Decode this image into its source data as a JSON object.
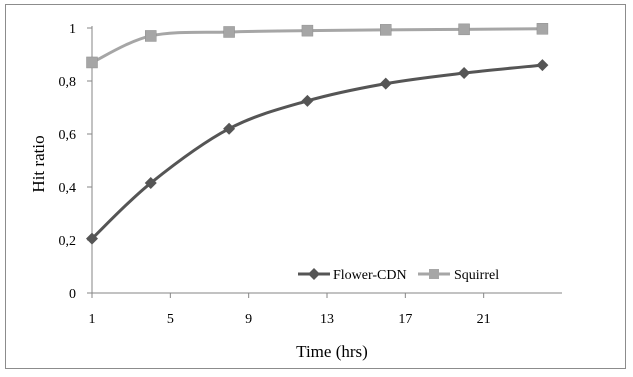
{
  "chart_data": {
    "type": "line",
    "title": "",
    "xlabel": "Time (hrs)",
    "ylabel": "Hit  ratio",
    "xlim": [
      1,
      25
    ],
    "ylim": [
      0,
      1
    ],
    "x_ticks": [
      "1",
      "5",
      "9",
      "13",
      "17",
      "21"
    ],
    "y_ticks": [
      "0",
      "0,2",
      "0,4",
      "0,6",
      "0,8",
      "1"
    ],
    "grid": false,
    "legend_position": "bottom-right",
    "series": [
      {
        "name": "Flower-CDN",
        "color": "#555555",
        "marker": "diamond",
        "x": [
          1,
          4,
          8,
          12,
          16,
          20,
          24
        ],
        "y": [
          0.205,
          0.415,
          0.62,
          0.725,
          0.79,
          0.83,
          0.86
        ]
      },
      {
        "name": "Squirrel",
        "color": "#a6a6a6",
        "marker": "square",
        "x": [
          1,
          4,
          8,
          12,
          16,
          20,
          24
        ],
        "y": [
          0.87,
          0.97,
          0.985,
          0.99,
          0.993,
          0.995,
          0.997
        ]
      }
    ]
  }
}
